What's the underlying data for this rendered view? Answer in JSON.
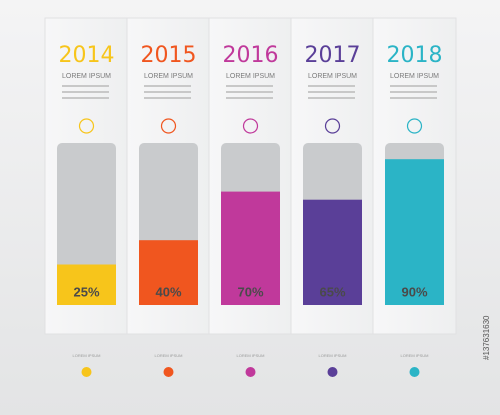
{
  "chart_data": {
    "type": "bar",
    "categories": [
      "2014",
      "2015",
      "2016",
      "2017",
      "2018"
    ],
    "subtitles": [
      "LOREM IPSUM",
      "LOREM IPSUM",
      "LOREM IPSUM",
      "LOREM IPSUM",
      "LOREM IPSUM"
    ],
    "values": [
      25,
      40,
      70,
      65,
      90
    ],
    "value_labels": [
      "25%",
      "40%",
      "70%",
      "65%",
      "90%"
    ],
    "colors": [
      "#f7c51b",
      "#f0561f",
      "#c0399b",
      "#5a3f98",
      "#2bb4c6"
    ],
    "footer_labels": [
      "LOREM IPSUM",
      "LOREM IPSUM",
      "LOREM IPSUM",
      "LOREM IPSUM",
      "LOREM IPSUM"
    ],
    "ylim": [
      0,
      100
    ],
    "watermark": "#137631630"
  }
}
